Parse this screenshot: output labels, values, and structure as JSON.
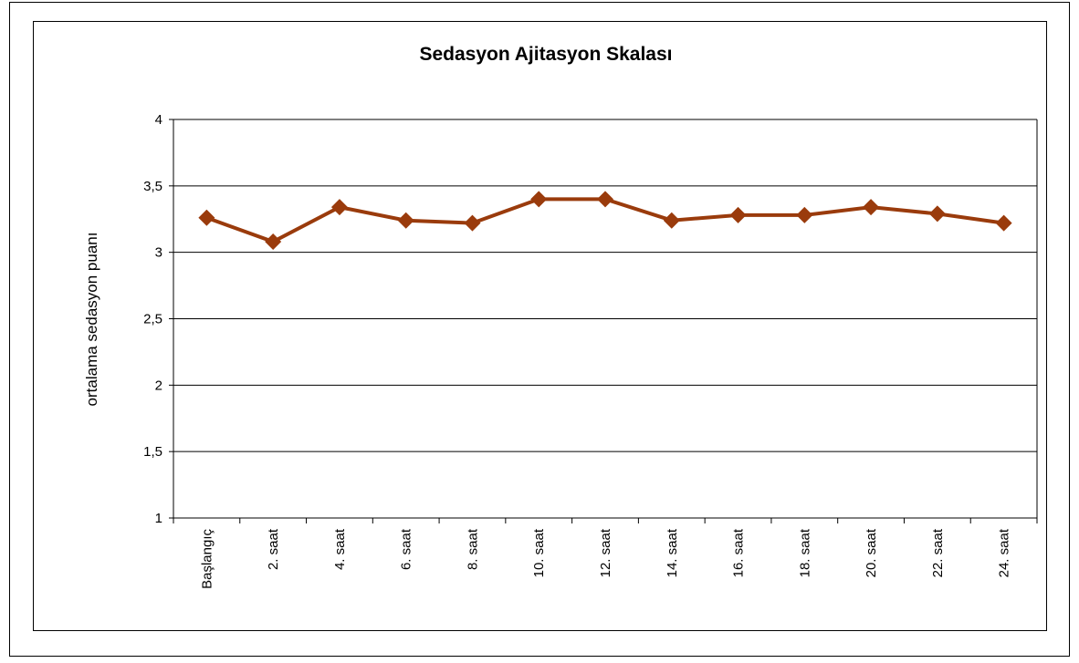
{
  "chart_data": {
    "type": "line",
    "title": "Sedasyon Ajitasyon Skalası",
    "y_label": "ortalama sedasyon puanı",
    "categories": [
      "Başlangıç",
      "2. saat",
      "4. saat",
      "6. saat",
      "8. saat",
      "10. saat",
      "12. saat",
      "14. saat",
      "16. saat",
      "18. saat",
      "20. saat",
      "22. saat",
      "24. saat"
    ],
    "series": [
      {
        "color": "#9a3b0c",
        "values": [
          3.26,
          3.08,
          3.34,
          3.24,
          3.22,
          3.4,
          3.4,
          3.24,
          3.28,
          3.28,
          3.34,
          3.29,
          3.22
        ]
      }
    ],
    "ylim": [
      1,
      4
    ],
    "yticks": [
      1,
      {
        "value": 1.5,
        "label": "1,5"
      },
      2,
      {
        "value": 2.5,
        "label": "2,5"
      },
      3,
      {
        "value": 3.5,
        "label": "3,5"
      },
      4
    ],
    "grid": true
  }
}
